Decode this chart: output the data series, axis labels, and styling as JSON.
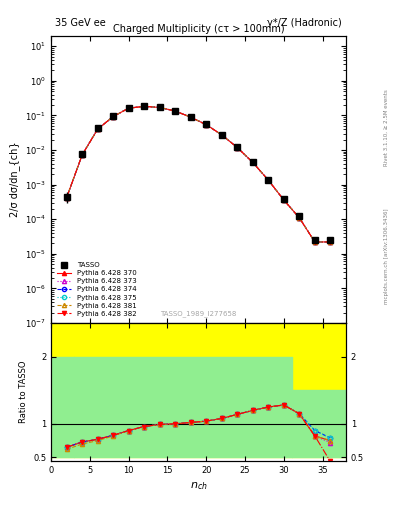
{
  "title_top_left": "35 GeV ee",
  "title_top_right": "γ*/Z (Hadronic)",
  "plot_title": "Charged Multiplicity (cτ > 100mm)",
  "xlabel": "n_{ch}",
  "ylabel_main": "2/σ dσ/dn_{ch}",
  "ylabel_ratio": "Ratio to TASSO",
  "right_label": "Rivet 3.1.10, ≥ 2.5M events",
  "right_label2": "mcplots.cern.ch [arXiv:1306.3436]",
  "watermark": "TASSO_1989_I277658",
  "nch": [
    2,
    4,
    6,
    8,
    10,
    12,
    14,
    16,
    18,
    20,
    22,
    24,
    26,
    28,
    30,
    32,
    34,
    36
  ],
  "tasso_y": [
    0.00045,
    0.0075,
    0.042,
    0.095,
    0.165,
    0.185,
    0.172,
    0.135,
    0.09,
    0.055,
    0.028,
    0.012,
    0.0045,
    0.0014,
    0.00038,
    0.00012,
    2.5e-05,
    2.5e-05
  ],
  "tasso_yerr": [
    0.00015,
    0.0005,
    0.002,
    0.004,
    0.006,
    0.007,
    0.006,
    0.005,
    0.003,
    0.002,
    0.001,
    0.0005,
    0.0002,
    8e-05,
    2e-05,
    1e-05,
    5e-06,
    5e-06
  ],
  "pythia370_y": [
    0.00042,
    0.0072,
    0.04,
    0.093,
    0.162,
    0.183,
    0.17,
    0.134,
    0.089,
    0.054,
    0.0275,
    0.0118,
    0.0044,
    0.00135,
    0.00036,
    0.00011,
    2.2e-05,
    2.2e-05
  ],
  "pythia373_y": [
    0.00042,
    0.0072,
    0.04,
    0.093,
    0.162,
    0.183,
    0.17,
    0.134,
    0.089,
    0.054,
    0.0275,
    0.0118,
    0.0044,
    0.00135,
    0.00036,
    0.00011,
    2.2e-05,
    2.2e-05
  ],
  "pythia374_y": [
    0.00042,
    0.0072,
    0.04,
    0.093,
    0.162,
    0.183,
    0.17,
    0.134,
    0.089,
    0.054,
    0.0275,
    0.0118,
    0.0044,
    0.00135,
    0.00036,
    0.00011,
    2.2e-05,
    2.2e-05
  ],
  "pythia375_y": [
    0.00042,
    0.0072,
    0.04,
    0.093,
    0.162,
    0.183,
    0.17,
    0.134,
    0.089,
    0.054,
    0.0275,
    0.0118,
    0.0044,
    0.00135,
    0.00036,
    0.00011,
    2.2e-05,
    2.2e-05
  ],
  "pythia381_y": [
    0.00042,
    0.0072,
    0.04,
    0.093,
    0.162,
    0.183,
    0.17,
    0.134,
    0.089,
    0.054,
    0.0275,
    0.0118,
    0.0044,
    0.00135,
    0.00036,
    0.00011,
    2.2e-05,
    2.2e-05
  ],
  "pythia382_y": [
    0.00042,
    0.0072,
    0.04,
    0.093,
    0.162,
    0.183,
    0.17,
    0.134,
    0.089,
    0.054,
    0.0275,
    0.0118,
    0.0044,
    0.00135,
    0.00036,
    0.00011,
    2.2e-05,
    2.2e-05
  ],
  "ratio370": [
    0.65,
    0.73,
    0.77,
    0.83,
    0.9,
    0.96,
    0.99,
    1.0,
    1.02,
    1.04,
    1.08,
    1.14,
    1.2,
    1.25,
    1.28,
    1.15,
    0.82,
    0.75
  ],
  "ratio373": [
    0.65,
    0.73,
    0.77,
    0.83,
    0.9,
    0.96,
    0.99,
    1.0,
    1.02,
    1.04,
    1.08,
    1.14,
    1.2,
    1.25,
    1.28,
    1.15,
    0.82,
    0.72
  ],
  "ratio374": [
    0.65,
    0.73,
    0.77,
    0.83,
    0.9,
    0.96,
    0.99,
    1.0,
    1.02,
    1.04,
    1.08,
    1.14,
    1.2,
    1.25,
    1.28,
    1.15,
    0.9,
    0.79
  ],
  "ratio375": [
    0.65,
    0.73,
    0.77,
    0.83,
    0.9,
    0.96,
    0.99,
    1.0,
    1.02,
    1.04,
    1.08,
    1.14,
    1.2,
    1.25,
    1.28,
    1.15,
    0.9,
    0.79
  ],
  "ratio381": [
    0.62,
    0.7,
    0.75,
    0.82,
    0.9,
    0.96,
    0.99,
    1.0,
    1.02,
    1.04,
    1.08,
    1.14,
    1.2,
    1.25,
    1.28,
    1.15,
    0.82,
    0.75
  ],
  "ratio382": [
    0.65,
    0.73,
    0.77,
    0.83,
    0.9,
    0.96,
    0.99,
    1.0,
    1.02,
    1.04,
    1.08,
    1.14,
    1.2,
    1.25,
    1.28,
    1.15,
    0.82,
    0.44
  ],
  "band_yellow_x": [
    0,
    4,
    4,
    32,
    32,
    40
  ],
  "band_yellow_lo": [
    0.5,
    0.5,
    0.5,
    0.5,
    0.5,
    0.5
  ],
  "band_yellow_hi": [
    2.5,
    2.5,
    2.5,
    2.5,
    2.5,
    2.5
  ],
  "color_370": "#ff0000",
  "color_373": "#cc00cc",
  "color_374": "#0000ff",
  "color_375": "#00cccc",
  "color_381": "#cc8800",
  "color_382": "#ff0000",
  "ylim_main": [
    1e-07,
    20
  ],
  "ylim_ratio": [
    0.45,
    2.5
  ],
  "xlim": [
    0,
    38
  ]
}
